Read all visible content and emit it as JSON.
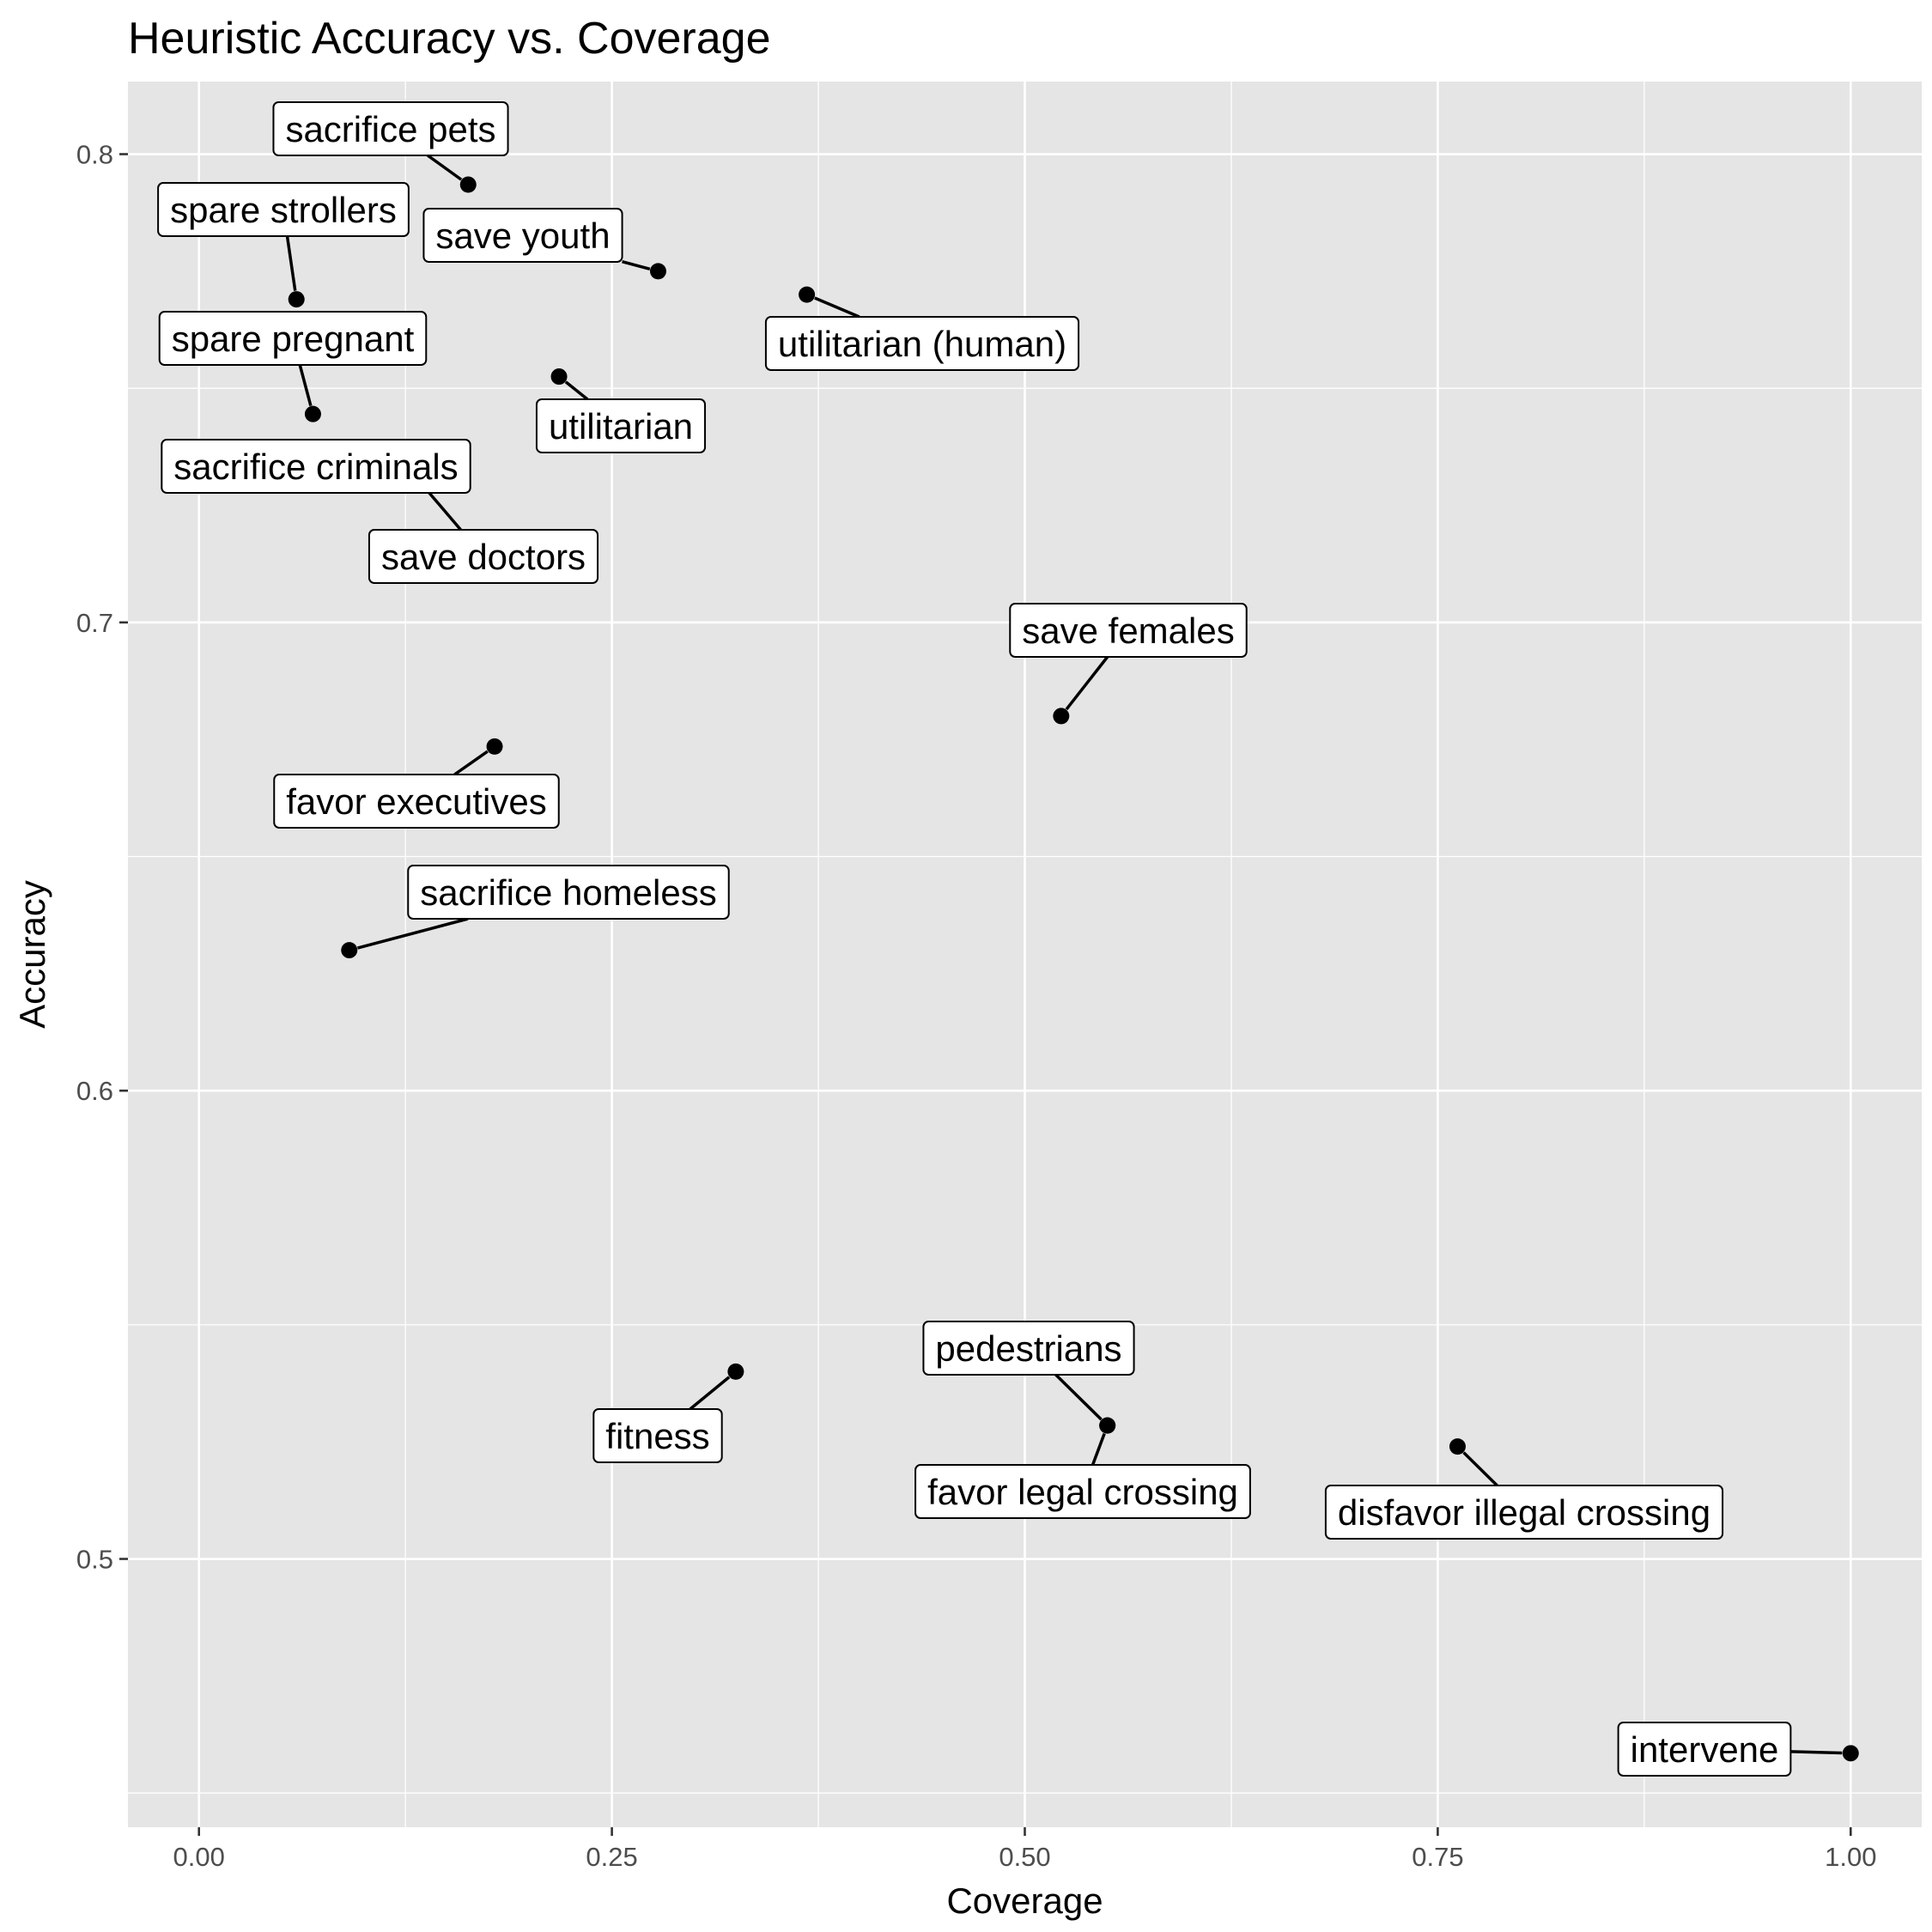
{
  "chart_data": {
    "type": "scatter",
    "title": "Heuristic Accuracy vs. Coverage",
    "xlabel": "Coverage",
    "ylabel": "Accuracy",
    "xlim": [
      -0.043,
      1.043
    ],
    "ylim": [
      0.4427,
      0.8155
    ],
    "xticks": [
      0.0,
      0.25,
      0.5,
      0.75,
      1.0
    ],
    "xtick_labels": [
      "0.00",
      "0.25",
      "0.50",
      "0.75",
      "1.00"
    ],
    "yticks": [
      0.5,
      0.6,
      0.7,
      0.8
    ],
    "ytick_labels": [
      "0.5",
      "0.6",
      "0.7",
      "0.8"
    ],
    "grid": true,
    "background": "#e5e5e5",
    "points": [
      {
        "label": "sacrifice pets",
        "x": 0.163,
        "y": 0.7935
      },
      {
        "label": "spare strollers",
        "x": 0.059,
        "y": 0.769
      },
      {
        "label": "save youth",
        "x": 0.278,
        "y": 0.775
      },
      {
        "label": "utilitarian (human)",
        "x": 0.368,
        "y": 0.77
      },
      {
        "label": "spare pregnant",
        "x": 0.069,
        "y": 0.7445
      },
      {
        "label": "utilitarian",
        "x": 0.218,
        "y": 0.7525
      },
      {
        "label": "sacrifice criminals",
        "x": 0.006,
        "y": 0.735
      },
      {
        "label": "save doctors",
        "x": 0.135,
        "y": 0.7295
      },
      {
        "label": "save females",
        "x": 0.522,
        "y": 0.68
      },
      {
        "label": "favor executives",
        "x": 0.179,
        "y": 0.6735
      },
      {
        "label": "sacrifice homeless",
        "x": 0.091,
        "y": 0.63
      },
      {
        "label": "fitness",
        "x": 0.325,
        "y": 0.54
      },
      {
        "label": "pedestrians",
        "x": 0.55,
        "y": 0.5285
      },
      {
        "label": "favor legal crossing",
        "x": 0.55,
        "y": 0.5285
      },
      {
        "label": "disfavor illegal crossing",
        "x": 0.762,
        "y": 0.524
      },
      {
        "label": "intervene",
        "x": 1.0,
        "y": 0.4585
      }
    ]
  }
}
